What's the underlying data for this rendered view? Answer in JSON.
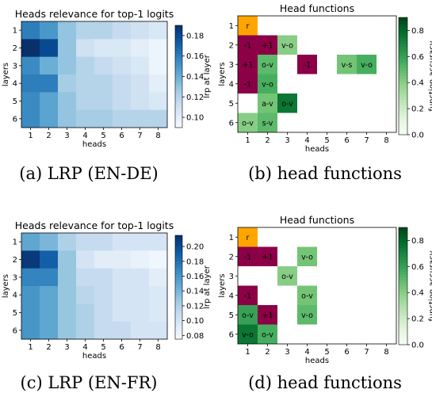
{
  "captions": [
    "(a) LRP (EN-DE)",
    "(b) head functions",
    "(c) LRP (EN-FR)",
    "(d) head functions"
  ],
  "chart_data": [
    {
      "type": "heatmap",
      "title": "Heads relevance for top-1 logits",
      "xlabel": "heads",
      "ylabel": "layers",
      "x_ticks": [
        "1",
        "2",
        "3",
        "4",
        "5",
        "6",
        "7",
        "8"
      ],
      "y_ticks": [
        "1",
        "2",
        "3",
        "4",
        "5",
        "6"
      ],
      "colorbar_label": "lrp at layer",
      "colorbar_ticks": [
        "0.10",
        "0.12",
        "0.14",
        "0.16",
        "0.18"
      ],
      "colorscale": "Blues",
      "range": [
        0.09,
        0.19
      ],
      "values": [
        [
          0.16,
          0.15,
          0.13,
          0.12,
          0.12,
          0.115,
          0.11,
          0.105
        ],
        [
          0.19,
          0.18,
          0.13,
          0.11,
          0.105,
          0.105,
          0.1,
          0.095
        ],
        [
          0.155,
          0.14,
          0.13,
          0.12,
          0.115,
          0.11,
          0.105,
          0.095
        ],
        [
          0.16,
          0.16,
          0.125,
          0.12,
          0.12,
          0.115,
          0.11,
          0.1
        ],
        [
          0.155,
          0.145,
          0.13,
          0.12,
          0.12,
          0.115,
          0.11,
          0.105
        ],
        [
          0.155,
          0.145,
          0.13,
          0.125,
          0.125,
          0.12,
          0.12,
          0.12
        ]
      ]
    },
    {
      "type": "heatmap",
      "title": "Head functions",
      "xlabel": "heads",
      "ylabel": "layers",
      "x_ticks": [
        "1",
        "2",
        "3",
        "4",
        "5",
        "6",
        "7",
        "8"
      ],
      "y_ticks": [
        "1",
        "2",
        "3",
        "4",
        "5",
        "6"
      ],
      "colorbar_label": "function accuracy",
      "colorbar_ticks": [
        "0.0",
        "0.2",
        "0.4",
        "0.6",
        "0.8"
      ],
      "colorscale": "Greens",
      "range": [
        0.0,
        0.9
      ],
      "categorical_colors": {
        "r": "#ffa500",
        "-1": "#8b0046",
        "+1": "#8b0046"
      },
      "cells": [
        {
          "layer": 1,
          "head": 1,
          "label": "r"
        },
        {
          "layer": 2,
          "head": 1,
          "label": "-1"
        },
        {
          "layer": 2,
          "head": 2,
          "label": "+1"
        },
        {
          "layer": 2,
          "head": 3,
          "label": "v-o",
          "value": 0.4
        },
        {
          "layer": 3,
          "head": 1,
          "label": "+1"
        },
        {
          "layer": 3,
          "head": 2,
          "label": "o-v",
          "value": 0.5
        },
        {
          "layer": 3,
          "head": 4,
          "label": "-1"
        },
        {
          "layer": 3,
          "head": 6,
          "label": "v-s",
          "value": 0.45
        },
        {
          "layer": 3,
          "head": 7,
          "label": "v-o",
          "value": 0.55
        },
        {
          "layer": 4,
          "head": 1,
          "label": "-1"
        },
        {
          "layer": 4,
          "head": 2,
          "label": "v-o",
          "value": 0.55
        },
        {
          "layer": 5,
          "head": 2,
          "label": "a-v",
          "value": 0.45
        },
        {
          "layer": 5,
          "head": 3,
          "label": "o-v",
          "value": 0.75
        },
        {
          "layer": 6,
          "head": 1,
          "label": "o-v",
          "value": 0.4
        },
        {
          "layer": 6,
          "head": 2,
          "label": "s-v",
          "value": 0.5
        }
      ]
    },
    {
      "type": "heatmap",
      "title": "Heads relevance for top-1 logits",
      "xlabel": "heads",
      "ylabel": "layers",
      "x_ticks": [
        "1",
        "2",
        "3",
        "4",
        "5",
        "6",
        "7",
        "8"
      ],
      "y_ticks": [
        "1",
        "2",
        "3",
        "4",
        "5",
        "6"
      ],
      "colorbar_label": "lrp at layer",
      "colorbar_ticks": [
        "0.08",
        "0.10",
        "0.12",
        "0.14",
        "0.16",
        "0.18",
        "0.20"
      ],
      "colorscale": "Blues",
      "range": [
        0.075,
        0.215
      ],
      "values": [
        [
          0.15,
          0.14,
          0.12,
          0.11,
          0.11,
          0.1,
          0.1,
          0.1
        ],
        [
          0.21,
          0.19,
          0.13,
          0.1,
          0.09,
          0.09,
          0.085,
          0.08
        ],
        [
          0.17,
          0.17,
          0.13,
          0.11,
          0.11,
          0.1,
          0.1,
          0.09
        ],
        [
          0.16,
          0.15,
          0.13,
          0.115,
          0.11,
          0.1,
          0.1,
          0.095
        ],
        [
          0.16,
          0.15,
          0.13,
          0.12,
          0.11,
          0.1,
          0.1,
          0.095
        ],
        [
          0.16,
          0.15,
          0.13,
          0.12,
          0.11,
          0.11,
          0.1,
          0.1
        ]
      ]
    },
    {
      "type": "heatmap",
      "title": "Head functions",
      "xlabel": "heads",
      "ylabel": "layers",
      "x_ticks": [
        "1",
        "2",
        "3",
        "4",
        "5",
        "6",
        "7",
        "8"
      ],
      "y_ticks": [
        "1",
        "2",
        "3",
        "4",
        "5",
        "6"
      ],
      "colorbar_label": "function accuracy",
      "colorbar_ticks": [
        "0.0",
        "0.2",
        "0.4",
        "0.6",
        "0.8"
      ],
      "colorscale": "Greens",
      "range": [
        0.0,
        0.9
      ],
      "categorical_colors": {
        "r": "#ffa500",
        "-1": "#8b0046",
        "+1": "#8b0046"
      },
      "cells": [
        {
          "layer": 1,
          "head": 1,
          "label": "r"
        },
        {
          "layer": 2,
          "head": 1,
          "label": "-1"
        },
        {
          "layer": 2,
          "head": 2,
          "label": "+1"
        },
        {
          "layer": 2,
          "head": 4,
          "label": "v-o",
          "value": 0.45
        },
        {
          "layer": 3,
          "head": 3,
          "label": "o-v",
          "value": 0.4
        },
        {
          "layer": 4,
          "head": 1,
          "label": "-1"
        },
        {
          "layer": 4,
          "head": 4,
          "label": "o-v",
          "value": 0.45
        },
        {
          "layer": 5,
          "head": 1,
          "label": "o-v",
          "value": 0.6
        },
        {
          "layer": 5,
          "head": 2,
          "label": "+1"
        },
        {
          "layer": 5,
          "head": 4,
          "label": "v-o",
          "value": 0.5
        },
        {
          "layer": 6,
          "head": 1,
          "label": "v-o",
          "value": 0.75
        },
        {
          "layer": 6,
          "head": 2,
          "label": "o-v",
          "value": 0.55
        }
      ]
    }
  ]
}
